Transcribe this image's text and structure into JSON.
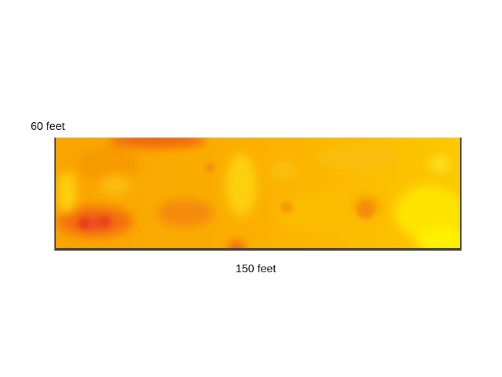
{
  "labels": {
    "height": "60 feet",
    "width": "150 feet"
  }
}
